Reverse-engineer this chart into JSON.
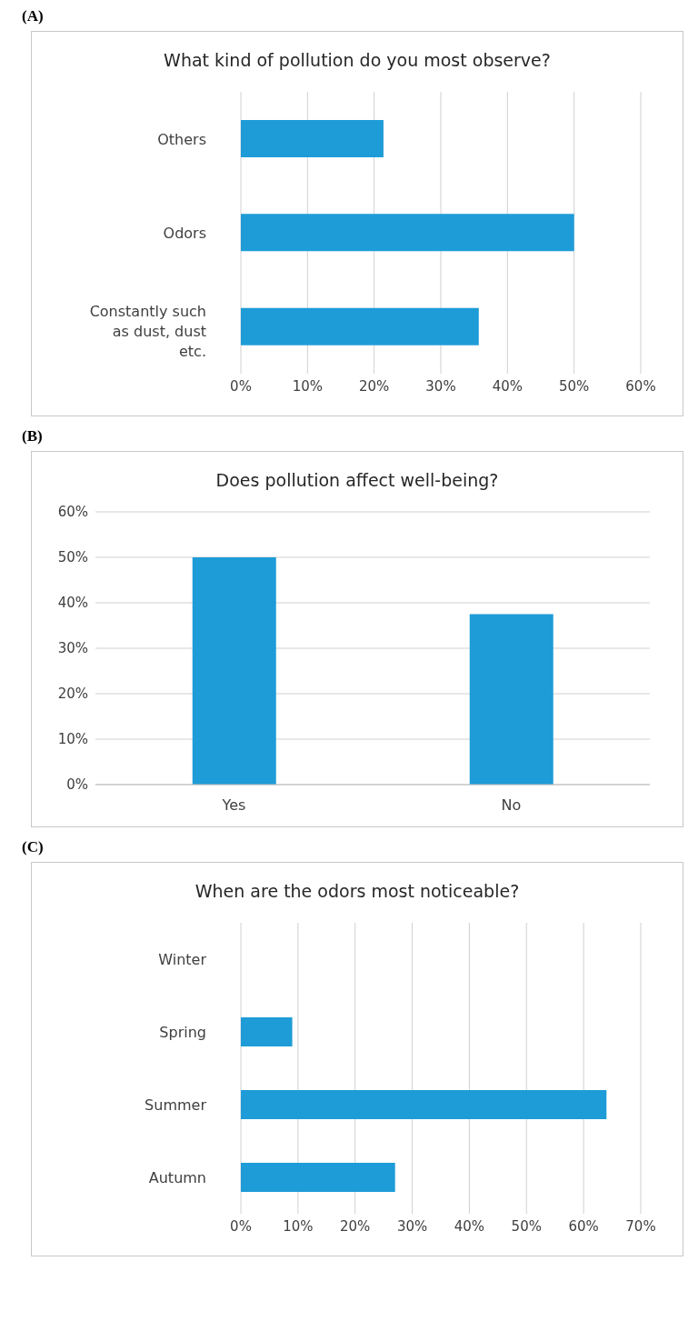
{
  "chart_data": [
    {
      "type": "bar",
      "orientation": "horizontal",
      "title": "What kind of pollution do you most observe?",
      "annotations": [
        "(A)"
      ],
      "categories": [
        "Others",
        "Odors",
        "Constantly such as dust, dust etc."
      ],
      "values": [
        21.4,
        50,
        35.7
      ],
      "color": "#1e9cd7",
      "xlim": [
        0,
        60
      ],
      "xticks": [
        {
          "value": 0,
          "label": "0%"
        },
        {
          "value": 10,
          "label": "10%"
        },
        {
          "value": 20,
          "label": "20%"
        },
        {
          "value": 30,
          "label": "30%"
        },
        {
          "value": 40,
          "label": "40%"
        },
        {
          "value": 50,
          "label": "50%"
        },
        {
          "value": 60,
          "label": "60%"
        }
      ],
      "grid": "x"
    },
    {
      "type": "bar",
      "title": "Does pollution affect well-being?",
      "annotations": [
        "(B)"
      ],
      "categories": [
        "Yes",
        "No"
      ],
      "values": [
        50,
        37.5
      ],
      "color": "#1e9cd7",
      "ylim": [
        0,
        60
      ],
      "yticks": [
        {
          "value": 0,
          "label": "0%"
        },
        {
          "value": 10,
          "label": "10%"
        },
        {
          "value": 20,
          "label": "20%"
        },
        {
          "value": 30,
          "label": "30%"
        },
        {
          "value": 40,
          "label": "40%"
        },
        {
          "value": 50,
          "label": "50%"
        },
        {
          "value": 60,
          "label": "60%"
        }
      ],
      "grid": "y"
    },
    {
      "type": "bar",
      "orientation": "horizontal",
      "title": "When are the odors most noticeable?",
      "annotations": [
        "(C)"
      ],
      "categories": [
        "Winter",
        "Spring",
        "Summer",
        "Autumn"
      ],
      "values": [
        0,
        9,
        64,
        27
      ],
      "color": "#1e9cd7",
      "xlim": [
        0,
        70
      ],
      "xticks": [
        {
          "value": 0,
          "label": "0%"
        },
        {
          "value": 10,
          "label": "10%"
        },
        {
          "value": 20,
          "label": "20%"
        },
        {
          "value": 30,
          "label": "30%"
        },
        {
          "value": 40,
          "label": "40%"
        },
        {
          "value": 50,
          "label": "50%"
        },
        {
          "value": 60,
          "label": "60%"
        },
        {
          "value": 70,
          "label": "70%"
        }
      ],
      "grid": "x"
    }
  ]
}
